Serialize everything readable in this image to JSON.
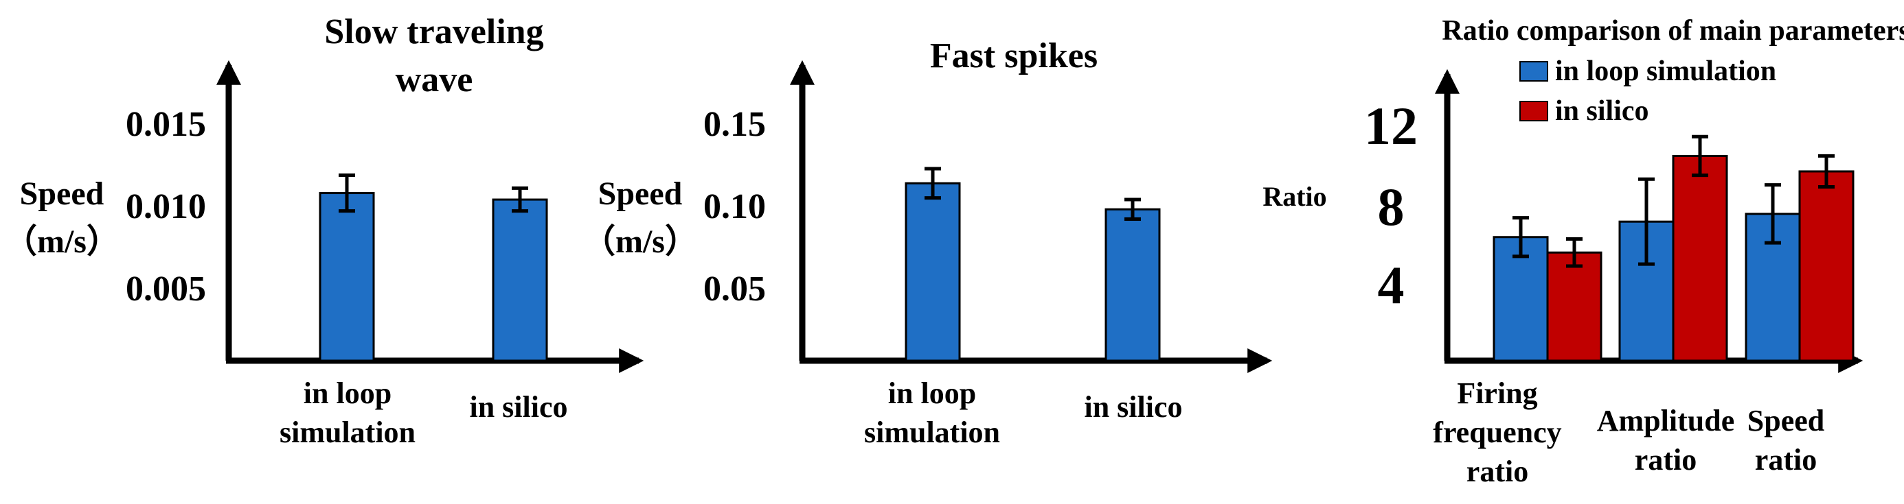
{
  "chart_data": [
    {
      "type": "bar",
      "title": "Slow traveling wave",
      "title_lines": [
        "Slow traveling",
        "wave"
      ],
      "ylabel": "Speed",
      "ylabel_unit": "（m/s）",
      "yticks": [
        "0.015",
        "0.010",
        "0.005"
      ],
      "ytick_values": [
        0.015,
        0.01,
        0.005
      ],
      "ylim": [
        0,
        0.0195
      ],
      "categories": [
        "in loop simulation",
        "in silico"
      ],
      "category_lines": [
        [
          "in loop",
          "simulation"
        ],
        [
          "in silico"
        ]
      ],
      "values": [
        0.0103,
        0.0099
      ],
      "errors": [
        0.0011,
        0.0007
      ],
      "colors": [
        "#1f6fc5"
      ]
    },
    {
      "type": "bar",
      "title": "Fast spikes",
      "title_lines": [
        "Fast spikes"
      ],
      "ylabel": "Speed",
      "ylabel_unit": "（m/s）",
      "yticks": [
        "0.15",
        "0.10",
        "0.05"
      ],
      "ytick_values": [
        0.15,
        0.1,
        0.05
      ],
      "ylim": [
        0,
        0.187
      ],
      "categories": [
        "in loop simulation",
        "in silico"
      ],
      "category_lines": [
        [
          "in loop",
          "simulation"
        ],
        [
          "in silico"
        ]
      ],
      "values": [
        0.109,
        0.093
      ],
      "errors": [
        0.009,
        0.006
      ],
      "colors": [
        "#1f6fc5"
      ]
    },
    {
      "type": "bar",
      "title": "Ratio comparison of main parameters",
      "title_lines": [
        "Ratio comparison of main parameters"
      ],
      "ylabel": "Ratio",
      "ylabel_unit": "",
      "yticks": [
        "12",
        "8",
        "4"
      ],
      "ytick_values": [
        12,
        8,
        4
      ],
      "ylim": [
        0,
        16
      ],
      "categories": [
        "Firing frequency ratio",
        "Amplitude ratio",
        "Speed ratio"
      ],
      "category_lines": [
        [
          "Firing",
          "frequency",
          "ratio"
        ],
        [
          "Amplitude",
          "ratio"
        ],
        [
          "Speed",
          "ratio"
        ]
      ],
      "series": [
        {
          "name": "in loop simulation",
          "color": "#1f6fc5",
          "values": [
            6.4,
            7.2,
            7.6
          ],
          "errors": [
            1.0,
            2.2,
            1.5
          ]
        },
        {
          "name": "in silico",
          "color": "#c00000",
          "values": [
            5.6,
            10.6,
            9.8
          ],
          "errors": [
            0.7,
            1.0,
            0.8
          ]
        }
      ]
    }
  ]
}
